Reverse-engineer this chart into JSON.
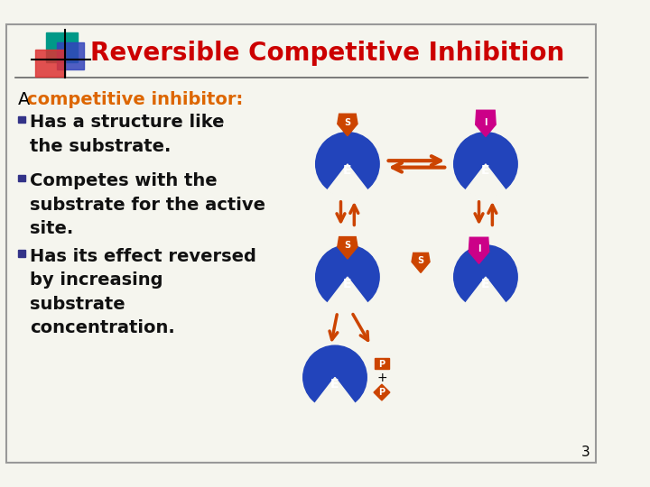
{
  "title": "Reversible Competitive Inhibition",
  "title_color": "#CC0000",
  "title_fontsize": 20,
  "bg_color": "#F5F5EE",
  "border_color": "#999999",
  "text_black": "#000000",
  "text_bold_color": "#111111",
  "bullet_color": "#333388",
  "intro_plain": "A ",
  "intro_highlight": "competitive inhibitor",
  "intro_colon": ":",
  "intro_color": "#DD6600",
  "bullets": [
    "Has a structure like\nthe substrate.",
    "Competes with the\nsubstrate for the active\nsite.",
    "Has its effect reversed\nby increasing\nsubstrate\nconcentration."
  ],
  "enzyme_color": "#2244BB",
  "substrate_color": "#CC4400",
  "inhibitor_color": "#CC0088",
  "arrow_color": "#CC4400",
  "label_color": "#FFFFFF",
  "deco_red": "#DD3333",
  "deco_blue": "#3344BB",
  "deco_teal": "#009988",
  "page_number": "3",
  "fontsize_body": 12,
  "fontsize_bullet": 12
}
